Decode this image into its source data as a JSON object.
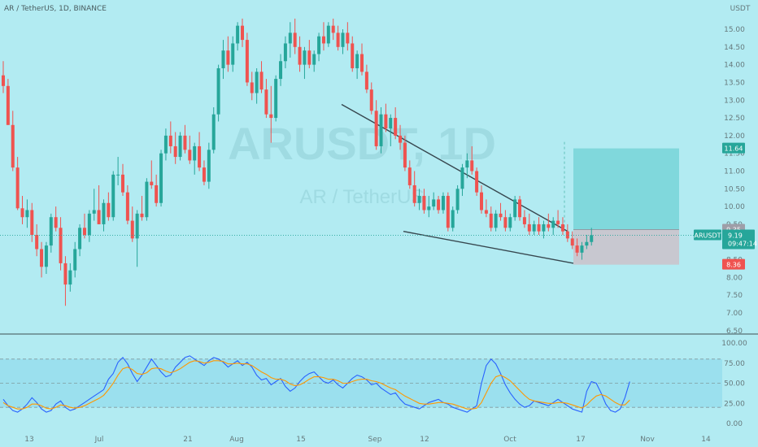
{
  "header": {
    "symbol_title": "AR / TetherUS, 1D, BINANCE",
    "currency": "USDT"
  },
  "watermark": {
    "ticker": "ARUSDT, 1D",
    "description": "AR / TetherUS"
  },
  "colors": {
    "background": "#b2ebf2",
    "up": "#26a69a",
    "down": "#ef5350",
    "target_zone": "#80d8dc",
    "stop_zone": "#c8c8d0",
    "rsi": "#2962ff",
    "rsi_ma": "#ff9800",
    "rsi_band": "#9be0ee",
    "price_line": "#26a69a"
  },
  "chart_data": [
    {
      "type": "candlestick",
      "price_axis": {
        "ticks": [
          "15.00",
          "14.50",
          "14.00",
          "13.50",
          "13.00",
          "12.50",
          "12.00",
          "11.50",
          "11.00",
          "10.50",
          "10.00",
          "9.50",
          "9.00",
          "8.50",
          "8.00",
          "7.50",
          "7.00",
          "6.50"
        ],
        "ylim": [
          6.5,
          15.25
        ]
      },
      "time_axis": {
        "ticks": [
          "13",
          "Jul",
          "21",
          "Aug",
          "15",
          "Sep",
          "12",
          "Oct",
          "17",
          "Nov",
          "14"
        ]
      },
      "current_price": {
        "symbol": "ARUSDT",
        "price": "9.19",
        "countdown": "09:47:14"
      },
      "position": {
        "target": "11.64",
        "entry": "9.35",
        "stop": "8.36"
      },
      "pattern": {
        "type": "falling wedge",
        "upper_from": 12.88,
        "upper_to": 9.3,
        "lower_from": 9.3,
        "lower_to": 8.4
      },
      "candles": [
        {
          "o": 13.7,
          "h": 14.1,
          "l": 13.2,
          "c": 13.4
        },
        {
          "o": 13.4,
          "h": 13.6,
          "l": 12.3,
          "c": 12.3
        },
        {
          "o": 12.3,
          "h": 12.7,
          "l": 11.0,
          "c": 11.1
        },
        {
          "o": 11.1,
          "h": 11.4,
          "l": 9.9,
          "c": 9.95
        },
        {
          "o": 9.95,
          "h": 10.3,
          "l": 9.5,
          "c": 9.7
        },
        {
          "o": 9.7,
          "h": 10.2,
          "l": 9.4,
          "c": 9.9
        },
        {
          "o": 9.9,
          "h": 10.1,
          "l": 9.0,
          "c": 9.2
        },
        {
          "o": 9.2,
          "h": 9.5,
          "l": 8.6,
          "c": 8.8
        },
        {
          "o": 8.8,
          "h": 9.0,
          "l": 8.0,
          "c": 8.3
        },
        {
          "o": 8.3,
          "h": 9.0,
          "l": 8.1,
          "c": 8.9
        },
        {
          "o": 8.9,
          "h": 9.8,
          "l": 8.7,
          "c": 9.7
        },
        {
          "o": 9.7,
          "h": 10.0,
          "l": 9.3,
          "c": 9.4
        },
        {
          "o": 9.4,
          "h": 9.7,
          "l": 8.2,
          "c": 8.4
        },
        {
          "o": 8.4,
          "h": 8.6,
          "l": 7.2,
          "c": 7.8
        },
        {
          "o": 7.8,
          "h": 8.4,
          "l": 7.6,
          "c": 8.2
        },
        {
          "o": 8.2,
          "h": 9.0,
          "l": 8.0,
          "c": 8.8
        },
        {
          "o": 8.8,
          "h": 9.5,
          "l": 8.6,
          "c": 9.4
        },
        {
          "o": 9.4,
          "h": 9.8,
          "l": 9.1,
          "c": 9.2
        },
        {
          "o": 9.2,
          "h": 9.9,
          "l": 9.0,
          "c": 9.8
        },
        {
          "o": 9.8,
          "h": 10.5,
          "l": 9.6,
          "c": 9.9
        },
        {
          "o": 9.9,
          "h": 10.6,
          "l": 9.5,
          "c": 9.5
        },
        {
          "o": 9.5,
          "h": 10.2,
          "l": 9.3,
          "c": 10.1
        },
        {
          "o": 10.1,
          "h": 10.4,
          "l": 9.6,
          "c": 9.7
        },
        {
          "o": 9.7,
          "h": 11.0,
          "l": 9.6,
          "c": 10.9
        },
        {
          "o": 10.9,
          "h": 11.4,
          "l": 10.6,
          "c": 10.9
        },
        {
          "o": 10.9,
          "h": 11.2,
          "l": 10.3,
          "c": 10.4
        },
        {
          "o": 10.4,
          "h": 10.6,
          "l": 9.5,
          "c": 9.6
        },
        {
          "o": 9.6,
          "h": 10.0,
          "l": 9.0,
          "c": 9.1
        },
        {
          "o": 9.1,
          "h": 9.9,
          "l": 8.3,
          "c": 9.8
        },
        {
          "o": 9.8,
          "h": 10.3,
          "l": 9.6,
          "c": 9.7
        },
        {
          "o": 9.7,
          "h": 10.8,
          "l": 9.6,
          "c": 10.7
        },
        {
          "o": 10.7,
          "h": 11.3,
          "l": 10.5,
          "c": 10.6
        },
        {
          "o": 10.6,
          "h": 10.9,
          "l": 10.0,
          "c": 10.1
        },
        {
          "o": 10.1,
          "h": 11.6,
          "l": 10.0,
          "c": 11.5
        },
        {
          "o": 11.5,
          "h": 12.2,
          "l": 11.3,
          "c": 12.0
        },
        {
          "o": 12.0,
          "h": 12.4,
          "l": 11.5,
          "c": 11.7
        },
        {
          "o": 11.7,
          "h": 12.1,
          "l": 11.2,
          "c": 11.4
        },
        {
          "o": 11.4,
          "h": 12.1,
          "l": 11.3,
          "c": 12.0
        },
        {
          "o": 12.0,
          "h": 12.3,
          "l": 11.5,
          "c": 11.6
        },
        {
          "o": 11.6,
          "h": 12.0,
          "l": 11.2,
          "c": 11.3
        },
        {
          "o": 11.3,
          "h": 11.8,
          "l": 10.9,
          "c": 11.7
        },
        {
          "o": 11.7,
          "h": 12.1,
          "l": 11.0,
          "c": 11.1
        },
        {
          "o": 11.1,
          "h": 11.3,
          "l": 10.6,
          "c": 10.7
        },
        {
          "o": 10.7,
          "h": 11.8,
          "l": 10.5,
          "c": 11.6
        },
        {
          "o": 11.6,
          "h": 12.8,
          "l": 11.5,
          "c": 12.6
        },
        {
          "o": 12.6,
          "h": 14.0,
          "l": 12.4,
          "c": 13.9
        },
        {
          "o": 13.9,
          "h": 14.7,
          "l": 13.6,
          "c": 14.4
        },
        {
          "o": 14.4,
          "h": 14.8,
          "l": 13.8,
          "c": 14.0
        },
        {
          "o": 14.0,
          "h": 14.8,
          "l": 13.8,
          "c": 14.6
        },
        {
          "o": 14.6,
          "h": 15.2,
          "l": 14.4,
          "c": 15.1
        },
        {
          "o": 15.1,
          "h": 15.3,
          "l": 14.5,
          "c": 14.7
        },
        {
          "o": 14.7,
          "h": 14.9,
          "l": 13.4,
          "c": 13.5
        },
        {
          "o": 13.5,
          "h": 13.8,
          "l": 13.0,
          "c": 13.2
        },
        {
          "o": 13.2,
          "h": 13.9,
          "l": 12.9,
          "c": 13.8
        },
        {
          "o": 13.8,
          "h": 14.1,
          "l": 13.2,
          "c": 13.3
        },
        {
          "o": 13.3,
          "h": 13.6,
          "l": 12.5,
          "c": 12.6
        },
        {
          "o": 12.6,
          "h": 13.4,
          "l": 11.8,
          "c": 12.5
        },
        {
          "o": 12.5,
          "h": 13.7,
          "l": 12.4,
          "c": 13.6
        },
        {
          "o": 13.6,
          "h": 14.3,
          "l": 13.4,
          "c": 14.1
        },
        {
          "o": 14.1,
          "h": 14.8,
          "l": 13.9,
          "c": 14.6
        },
        {
          "o": 14.6,
          "h": 15.2,
          "l": 14.2,
          "c": 14.9
        },
        {
          "o": 14.9,
          "h": 15.3,
          "l": 14.3,
          "c": 14.5
        },
        {
          "o": 14.5,
          "h": 14.8,
          "l": 13.8,
          "c": 14.0
        },
        {
          "o": 14.0,
          "h": 14.5,
          "l": 13.6,
          "c": 14.4
        },
        {
          "o": 14.4,
          "h": 14.7,
          "l": 13.9,
          "c": 14.0
        },
        {
          "o": 14.0,
          "h": 14.4,
          "l": 13.8,
          "c": 14.3
        },
        {
          "o": 14.3,
          "h": 14.9,
          "l": 14.1,
          "c": 14.8
        },
        {
          "o": 14.8,
          "h": 15.2,
          "l": 14.4,
          "c": 14.6
        },
        {
          "o": 14.6,
          "h": 15.2,
          "l": 14.5,
          "c": 15.1
        },
        {
          "o": 15.1,
          "h": 15.3,
          "l": 14.7,
          "c": 14.9
        },
        {
          "o": 14.9,
          "h": 15.1,
          "l": 14.4,
          "c": 14.5
        },
        {
          "o": 14.5,
          "h": 15.0,
          "l": 14.3,
          "c": 14.9
        },
        {
          "o": 14.9,
          "h": 15.2,
          "l": 14.4,
          "c": 14.6
        },
        {
          "o": 14.6,
          "h": 14.8,
          "l": 13.8,
          "c": 13.9
        },
        {
          "o": 13.9,
          "h": 14.4,
          "l": 13.6,
          "c": 14.3
        },
        {
          "o": 14.3,
          "h": 14.6,
          "l": 13.7,
          "c": 13.8
        },
        {
          "o": 13.8,
          "h": 14.0,
          "l": 13.2,
          "c": 13.3
        },
        {
          "o": 13.3,
          "h": 13.5,
          "l": 12.6,
          "c": 12.7
        },
        {
          "o": 12.7,
          "h": 13.0,
          "l": 11.6,
          "c": 11.7
        },
        {
          "o": 11.7,
          "h": 12.8,
          "l": 11.5,
          "c": 12.6
        },
        {
          "o": 12.6,
          "h": 12.9,
          "l": 12.1,
          "c": 12.2
        },
        {
          "o": 12.2,
          "h": 12.6,
          "l": 11.7,
          "c": 12.5
        },
        {
          "o": 12.5,
          "h": 12.8,
          "l": 11.9,
          "c": 12.0
        },
        {
          "o": 12.0,
          "h": 12.3,
          "l": 11.6,
          "c": 11.8
        },
        {
          "o": 11.8,
          "h": 12.0,
          "l": 11.0,
          "c": 11.1
        },
        {
          "o": 11.1,
          "h": 11.3,
          "l": 10.5,
          "c": 10.6
        },
        {
          "o": 10.6,
          "h": 11.0,
          "l": 10.0,
          "c": 10.1
        },
        {
          "o": 10.1,
          "h": 10.5,
          "l": 9.9,
          "c": 10.3
        },
        {
          "o": 10.3,
          "h": 10.5,
          "l": 9.8,
          "c": 9.9
        },
        {
          "o": 9.9,
          "h": 10.3,
          "l": 9.7,
          "c": 10.0
        },
        {
          "o": 10.0,
          "h": 10.4,
          "l": 9.9,
          "c": 10.2
        },
        {
          "o": 10.2,
          "h": 10.3,
          "l": 9.8,
          "c": 9.9
        },
        {
          "o": 9.9,
          "h": 10.4,
          "l": 9.8,
          "c": 10.3
        },
        {
          "o": 10.3,
          "h": 10.4,
          "l": 9.3,
          "c": 9.4
        },
        {
          "o": 9.4,
          "h": 10.0,
          "l": 9.3,
          "c": 9.9
        },
        {
          "o": 9.9,
          "h": 10.6,
          "l": 9.8,
          "c": 10.5
        },
        {
          "o": 10.5,
          "h": 11.2,
          "l": 10.3,
          "c": 11.1
        },
        {
          "o": 11.1,
          "h": 11.5,
          "l": 10.8,
          "c": 11.3
        },
        {
          "o": 11.3,
          "h": 11.7,
          "l": 10.9,
          "c": 11.0
        },
        {
          "o": 11.0,
          "h": 11.1,
          "l": 10.3,
          "c": 10.4
        },
        {
          "o": 10.4,
          "h": 10.6,
          "l": 9.8,
          "c": 9.9
        },
        {
          "o": 9.9,
          "h": 10.2,
          "l": 9.7,
          "c": 9.8
        },
        {
          "o": 9.8,
          "h": 10.0,
          "l": 9.3,
          "c": 9.4
        },
        {
          "o": 9.4,
          "h": 9.9,
          "l": 9.3,
          "c": 9.8
        },
        {
          "o": 9.8,
          "h": 10.1,
          "l": 9.6,
          "c": 9.7
        },
        {
          "o": 9.7,
          "h": 9.9,
          "l": 9.3,
          "c": 9.4
        },
        {
          "o": 9.4,
          "h": 9.8,
          "l": 9.3,
          "c": 9.7
        },
        {
          "o": 9.7,
          "h": 10.3,
          "l": 9.6,
          "c": 10.2
        },
        {
          "o": 10.2,
          "h": 10.3,
          "l": 9.6,
          "c": 9.7
        },
        {
          "o": 9.7,
          "h": 9.9,
          "l": 9.4,
          "c": 9.5
        },
        {
          "o": 9.5,
          "h": 9.8,
          "l": 9.2,
          "c": 9.3
        },
        {
          "o": 9.3,
          "h": 9.6,
          "l": 9.2,
          "c": 9.5
        },
        {
          "o": 9.5,
          "h": 9.7,
          "l": 9.2,
          "c": 9.3
        },
        {
          "o": 9.3,
          "h": 9.6,
          "l": 9.1,
          "c": 9.5
        },
        {
          "o": 9.5,
          "h": 9.8,
          "l": 9.3,
          "c": 9.4
        },
        {
          "o": 9.4,
          "h": 9.7,
          "l": 9.2,
          "c": 9.6
        },
        {
          "o": 9.6,
          "h": 9.9,
          "l": 9.4,
          "c": 9.5
        },
        {
          "o": 9.5,
          "h": 9.7,
          "l": 9.2,
          "c": 9.3
        },
        {
          "o": 9.3,
          "h": 9.5,
          "l": 9.0,
          "c": 9.1
        },
        {
          "o": 9.1,
          "h": 9.3,
          "l": 8.8,
          "c": 8.9
        },
        {
          "o": 8.9,
          "h": 9.1,
          "l": 8.6,
          "c": 8.7
        },
        {
          "o": 8.7,
          "h": 9.0,
          "l": 8.5,
          "c": 8.9
        },
        {
          "o": 8.9,
          "h": 9.2,
          "l": 8.8,
          "c": 9.0
        },
        {
          "o": 9.0,
          "h": 9.4,
          "l": 8.9,
          "c": 9.19
        }
      ]
    },
    {
      "type": "line",
      "indicator": "RSI",
      "axis": {
        "ticks": [
          "100.00",
          "75.00",
          "50.00",
          "25.00",
          "0.00"
        ],
        "ylim": [
          0,
          100
        ]
      },
      "band": {
        "upper": 80,
        "middle": 50,
        "lower": 20
      },
      "series": [
        {
          "values": [
            30,
            22,
            16,
            14,
            18,
            24,
            32,
            26,
            18,
            14,
            16,
            24,
            28,
            20,
            16,
            18,
            22,
            26,
            30,
            34,
            38,
            42,
            55,
            62,
            76,
            82,
            74,
            62,
            52,
            60,
            70,
            80,
            72,
            64,
            58,
            60,
            70,
            76,
            82,
            84,
            80,
            76,
            72,
            78,
            82,
            80,
            76,
            70,
            74,
            78,
            72,
            76,
            70,
            60,
            54,
            56,
            48,
            52,
            56,
            46,
            40,
            44,
            52,
            58,
            62,
            64,
            58,
            52,
            50,
            54,
            48,
            44,
            50,
            56,
            60,
            58,
            54,
            48,
            50,
            44,
            40,
            36,
            38,
            30,
            24,
            22,
            20,
            18,
            22,
            26,
            28,
            30,
            26,
            24,
            20,
            18,
            16,
            14,
            18,
            22,
            50,
            72,
            80,
            74,
            62,
            48,
            38,
            30,
            24,
            20,
            22,
            28,
            26,
            24,
            22,
            26,
            30,
            26,
            22,
            18,
            16,
            14,
            40,
            52,
            50,
            38,
            24,
            16,
            14,
            18,
            32,
            52
          ]
        },
        {
          "values": [
            26,
            22,
            20,
            18,
            18,
            20,
            24,
            24,
            22,
            19,
            18,
            20,
            23,
            22,
            20,
            19,
            20,
            22,
            25,
            28,
            31,
            35,
            42,
            50,
            60,
            68,
            70,
            67,
            62,
            61,
            63,
            68,
            69,
            68,
            65,
            63,
            65,
            68,
            72,
            76,
            78,
            77,
            75,
            76,
            78,
            78,
            77,
            74,
            74,
            75,
            74,
            74,
            72,
            68,
            64,
            61,
            57,
            55,
            55,
            53,
            49,
            47,
            48,
            51,
            55,
            58,
            58,
            57,
            55,
            55,
            53,
            50,
            50,
            52,
            54,
            55,
            55,
            53,
            52,
            50,
            47,
            44,
            42,
            38,
            34,
            31,
            28,
            25,
            24,
            24,
            25,
            26,
            26,
            25,
            24,
            22,
            20,
            18,
            18,
            19,
            26,
            38,
            50,
            58,
            60,
            57,
            53,
            47,
            41,
            35,
            30,
            28,
            27,
            26,
            25,
            25,
            26,
            26,
            25,
            23,
            21,
            19,
            23,
            29,
            34,
            36,
            34,
            30,
            26,
            23,
            23,
            29
          ]
        }
      ]
    }
  ]
}
